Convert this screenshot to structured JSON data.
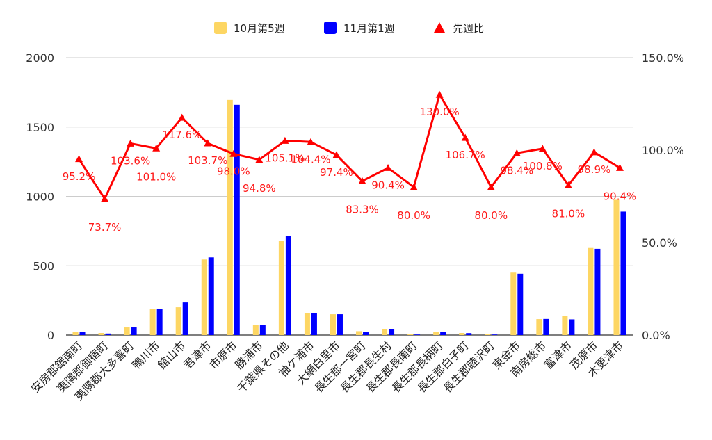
{
  "chart_data": {
    "type": "bar",
    "categories": [
      "安房郡鋸南町",
      "夷隅郡御宿町",
      "夷隅郡大多喜町",
      "鴨川市",
      "館山市",
      "君津市",
      "市原市",
      "勝浦市",
      "千葉県その他",
      "袖ケ浦市",
      "大網白里市",
      "長生郡一宮町",
      "長生郡長生村",
      "長生郡長南町",
      "長生郡長柄町",
      "長生郡白子町",
      "長生郡睦沢町",
      "東金市",
      "南房総市",
      "富津市",
      "茂原市",
      "木更津市"
    ],
    "series": [
      {
        "name": "10月第5週",
        "type": "bar",
        "axis": "left",
        "color": "#fdd663",
        "values": [
          21,
          15,
          55,
          190,
          200,
          545,
          1695,
          72,
          680,
          160,
          150,
          28,
          45,
          5,
          23,
          15,
          5,
          450,
          115,
          140,
          628,
          975
        ]
      },
      {
        "name": "11月第1週",
        "type": "bar",
        "axis": "left",
        "color": "#0000ff",
        "values": [
          20,
          11,
          55,
          190,
          235,
          560,
          1660,
          72,
          715,
          157,
          150,
          20,
          45,
          4,
          23,
          14,
          4,
          442,
          116,
          113,
          622,
          890
        ]
      },
      {
        "name": "先週比",
        "type": "line",
        "axis": "right",
        "color": "#ff0000",
        "marker": "triangle",
        "values": [
          95.2,
          73.7,
          103.6,
          101.0,
          117.6,
          103.7,
          98.0,
          94.8,
          105.1,
          104.4,
          97.4,
          83.3,
          90.4,
          80.0,
          130.0,
          106.7,
          80.0,
          98.4,
          100.8,
          81.0,
          98.9,
          90.4
        ],
        "labels": [
          "95.2%",
          "73.7%",
          "103.6%",
          "101.0%",
          "117.6%",
          "103.7%",
          "98.0%",
          "94.8%",
          "105.1%",
          "104.4%",
          "97.4%",
          "83.3%",
          "90.4%",
          "80.0%",
          "130.0%",
          "106.7%",
          "80.0%",
          "98.4%",
          "100.8%",
          "81.0%",
          "98.9%",
          "90.4%"
        ]
      }
    ],
    "y_left": {
      "min": 0,
      "max": 2000,
      "ticks": [
        0,
        500,
        1000,
        1500,
        2000
      ]
    },
    "y_right": {
      "min": 0,
      "max": 150,
      "ticks": [
        0,
        50,
        100,
        150
      ],
      "tick_labels": [
        "0.0%",
        "50.0%",
        "100.0%",
        "150.0%"
      ]
    },
    "grid": true,
    "legend_position": "top-center"
  }
}
